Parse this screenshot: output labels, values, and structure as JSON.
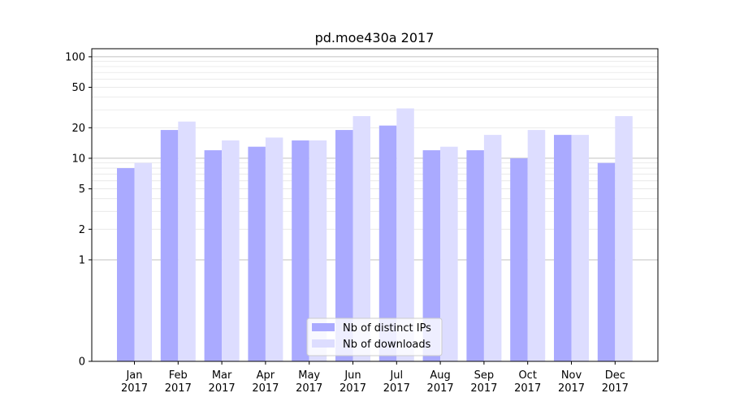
{
  "chart_data": {
    "type": "bar",
    "title": "pd.moe430a 2017",
    "xlabel": "",
    "ylabel": "",
    "yscale": "symlog",
    "ylim": [
      0,
      120
    ],
    "yticks": [
      0,
      1,
      2,
      5,
      10,
      20,
      50,
      100
    ],
    "categories": [
      {
        "month": "Jan",
        "year": "2017"
      },
      {
        "month": "Feb",
        "year": "2017"
      },
      {
        "month": "Mar",
        "year": "2017"
      },
      {
        "month": "Apr",
        "year": "2017"
      },
      {
        "month": "May",
        "year": "2017"
      },
      {
        "month": "Jun",
        "year": "2017"
      },
      {
        "month": "Jul",
        "year": "2017"
      },
      {
        "month": "Aug",
        "year": "2017"
      },
      {
        "month": "Sep",
        "year": "2017"
      },
      {
        "month": "Oct",
        "year": "2017"
      },
      {
        "month": "Nov",
        "year": "2017"
      },
      {
        "month": "Dec",
        "year": "2017"
      }
    ],
    "series": [
      {
        "name": "Nb of distinct IPs",
        "color": "#aaaaff",
        "values": [
          8,
          19,
          12,
          13,
          15,
          19,
          21,
          12,
          12,
          10,
          17,
          9
        ]
      },
      {
        "name": "Nb of downloads",
        "color": "#ddddff",
        "values": [
          9,
          23,
          15,
          16,
          15,
          26,
          31,
          13,
          17,
          19,
          17,
          26
        ]
      }
    ],
    "grid": true,
    "legend_position": "bottom-center"
  }
}
